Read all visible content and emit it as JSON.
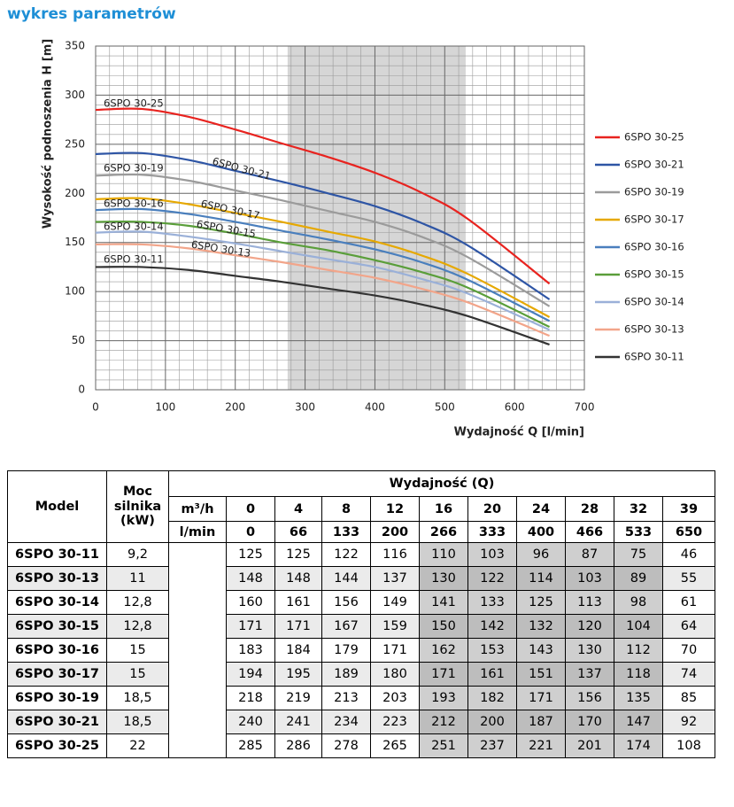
{
  "page_title": "wykres parametrów",
  "chart_data": {
    "type": "line",
    "xlabel": "Wydajność Q [l/min]",
    "ylabel": "Wysokość podnoszenia H [m]",
    "x": [
      0,
      66,
      133,
      200,
      266,
      333,
      400,
      466,
      533,
      650
    ],
    "xlim": [
      0,
      700
    ],
    "xticks": [
      0,
      100,
      200,
      300,
      400,
      500,
      600,
      700
    ],
    "ylim": [
      0,
      350
    ],
    "yticks": [
      0,
      50,
      100,
      150,
      200,
      250,
      300,
      350
    ],
    "grid": true,
    "minor_grid": true,
    "legend": "right",
    "highlight_range": [
      275,
      530
    ],
    "highlight_color": "#d6d6d6",
    "series": [
      {
        "name": "6SPO 30-25",
        "color": "#e8231f",
        "values": [
          285,
          286,
          278,
          265,
          251,
          237,
          221,
          201,
          174,
          108
        ]
      },
      {
        "name": "6SPO 30-21",
        "color": "#2e55a5",
        "values": [
          240,
          241,
          234,
          223,
          212,
          200,
          187,
          170,
          147,
          92
        ]
      },
      {
        "name": "6SPO 30-19",
        "color": "#9b9b9b",
        "values": [
          218,
          219,
          213,
          203,
          193,
          182,
          171,
          156,
          135,
          85
        ]
      },
      {
        "name": "6SPO 30-17",
        "color": "#e6a800",
        "values": [
          194,
          195,
          189,
          180,
          171,
          161,
          151,
          137,
          118,
          74
        ]
      },
      {
        "name": "6SPO 30-16",
        "color": "#4a7fbd",
        "values": [
          183,
          184,
          179,
          171,
          162,
          153,
          143,
          130,
          112,
          70
        ]
      },
      {
        "name": "6SPO 30-15",
        "color": "#5a9e3a",
        "values": [
          171,
          171,
          167,
          159,
          150,
          142,
          132,
          120,
          104,
          64
        ]
      },
      {
        "name": "6SPO 30-14",
        "color": "#9ab0d8",
        "values": [
          160,
          161,
          156,
          149,
          141,
          133,
          125,
          113,
          98,
          61
        ]
      },
      {
        "name": "6SPO 30-13",
        "color": "#f2a58a",
        "values": [
          148,
          148,
          144,
          137,
          130,
          122,
          114,
          103,
          89,
          55
        ]
      },
      {
        "name": "6SPO 30-11",
        "color": "#333333",
        "values": [
          125,
          125,
          122,
          116,
          110,
          103,
          96,
          87,
          75,
          46
        ]
      }
    ]
  },
  "table": {
    "model_header": "Model",
    "power_header": "Moc silnika (kW)",
    "flow_header": "Wydajność (Q)",
    "unit_m3h": "m³/h",
    "unit_lmin": "l/min",
    "m3h": [
      0,
      4,
      8,
      12,
      16,
      20,
      24,
      28,
      32,
      39
    ],
    "power": [
      "9,2",
      "11",
      "12,8",
      "12,8",
      "15",
      "15",
      "18,5",
      "18,5",
      "22"
    ]
  }
}
